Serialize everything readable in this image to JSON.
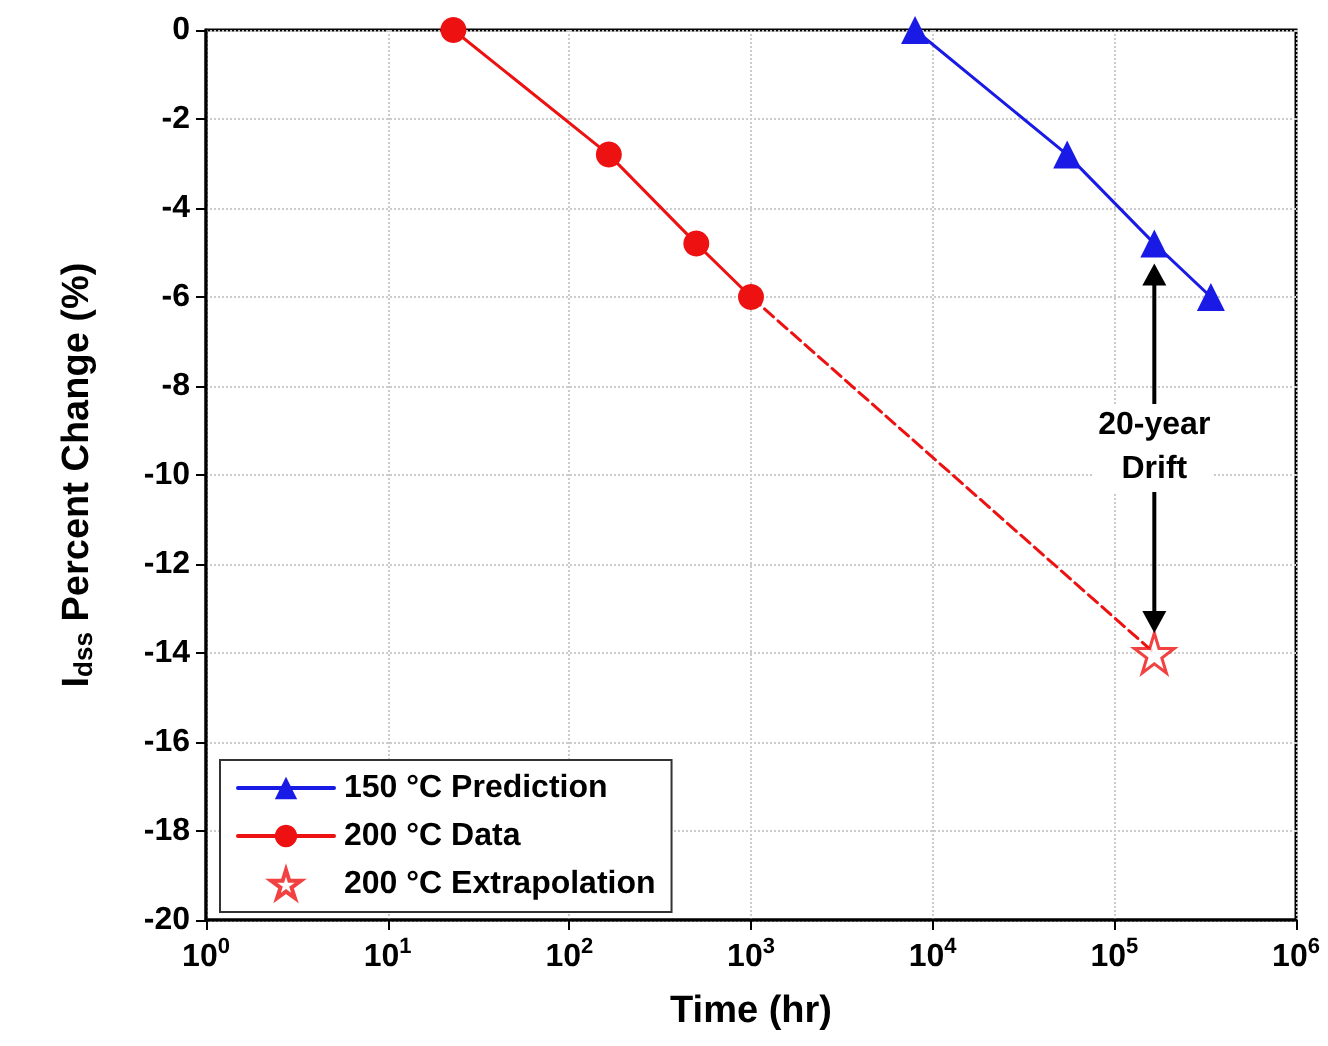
{
  "chart_data": {
    "type": "line",
    "xlabel": "Time (hr)",
    "ylabel": "I$_{dss}$ Percent Change (%)",
    "log": "x",
    "xlim": [
      1,
      1000000
    ],
    "xticks": [
      {
        "value": 1,
        "label": "10$^{0}$"
      },
      {
        "value": 10,
        "label": "10$^{1}$"
      },
      {
        "value": 100,
        "label": "10$^{2}$"
      },
      {
        "value": 1000,
        "label": "10$^{3}$"
      },
      {
        "value": 10000,
        "label": "10$^{4}$"
      },
      {
        "value": 100000,
        "label": "10$^{5}$"
      },
      {
        "value": 1000000,
        "label": "10$^{6}$"
      }
    ],
    "ylim": [
      -20,
      0
    ],
    "yticks": [
      -20,
      -18,
      -16,
      -14,
      -12,
      -10,
      -8,
      -6,
      -4,
      -2,
      0
    ],
    "grid": true,
    "legend": "bottom left",
    "series": [
      {
        "name": "150 °C Prediction",
        "color": "#1a1ae6",
        "marker": "triangle",
        "line_style": "solid",
        "x": [
          8000,
          55000,
          166000,
          340000
        ],
        "values": [
          0,
          -2.8,
          -4.8,
          -6
        ]
      },
      {
        "name": "200 °C Data",
        "color": "#ee1111",
        "marker": "circle",
        "line_style": "solid",
        "x": [
          23,
          165,
          500,
          1000
        ],
        "values": [
          0,
          -2.8,
          -4.8,
          -6
        ]
      },
      {
        "color": "#ee1111",
        "marker": "none",
        "line_style": "dashed",
        "x": [
          1000,
          166000
        ],
        "values": [
          -6,
          -14
        ]
      },
      {
        "name": "200 °C Extrapolation",
        "type": "scatter",
        "color": "#ee1111",
        "marker": "star",
        "x": [
          166000
        ],
        "values": [
          -14
        ]
      }
    ],
    "annotations": [
      "20-year\nDrift"
    ]
  }
}
